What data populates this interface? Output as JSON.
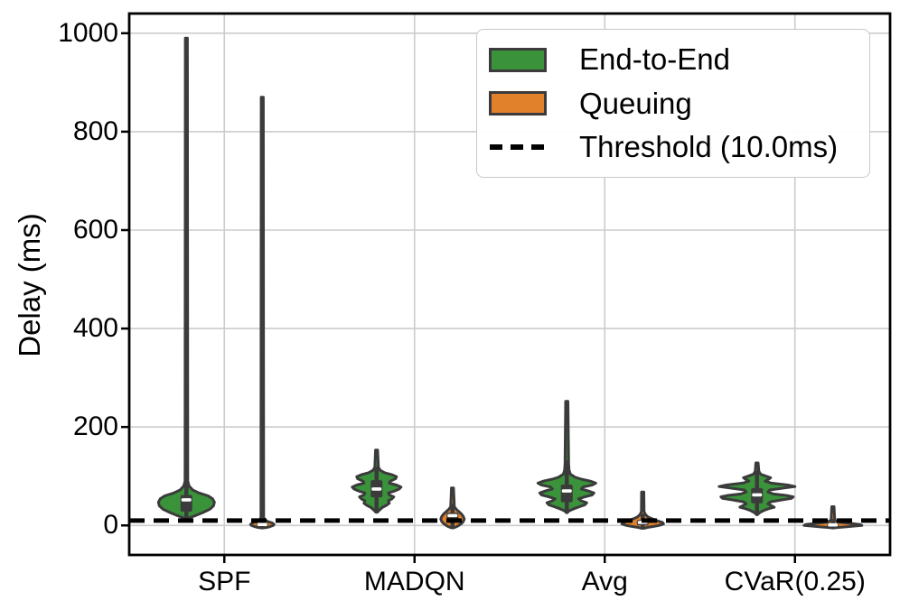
{
  "colors": {
    "green": "#3a923a",
    "orange": "#e1812c",
    "edge": "#3b3b3b",
    "grid": "#cccccc",
    "spine": "#000000",
    "threshold": "#000000",
    "median": "#ffffff",
    "background": "#ffffff"
  },
  "legend": {
    "items": [
      {
        "label": "End-to-End",
        "type": "patch",
        "color": "#3a923a"
      },
      {
        "label": "Queuing",
        "type": "patch",
        "color": "#e1812c"
      },
      {
        "label": "Threshold (10.0ms)",
        "type": "dashed-line",
        "color": "#000000"
      }
    ]
  },
  "chart_data": {
    "type": "violin",
    "title": "",
    "xlabel": "",
    "ylabel": "Delay (ms)",
    "categories": [
      "SPF",
      "MADQN",
      "Avg",
      "CVaR(0.25)"
    ],
    "yticks": [
      0,
      200,
      400,
      600,
      800,
      1000
    ],
    "ylim": [
      -60,
      1040
    ],
    "grid": true,
    "legend_position": "upper right",
    "threshold": {
      "value": 10.0,
      "label": "Threshold (10.0ms)"
    },
    "series": [
      {
        "name": "End-to-End",
        "color": "#3a923a",
        "offset": -42
      },
      {
        "name": "Queuing",
        "color": "#e1812c",
        "offset": 42
      }
    ],
    "violins": [
      {
        "category": 0,
        "series": 0,
        "max": 990,
        "profile": [
          [
            13,
            1
          ],
          [
            16,
            4
          ],
          [
            20,
            10
          ],
          [
            26,
            18
          ],
          [
            33,
            26
          ],
          [
            40,
            30
          ],
          [
            47,
            31
          ],
          [
            54,
            29
          ],
          [
            60,
            24
          ],
          [
            66,
            14
          ],
          [
            72,
            7
          ],
          [
            80,
            3
          ],
          [
            90,
            1.5
          ],
          [
            990,
            1.2
          ]
        ],
        "box": {
          "whisker_low": 14,
          "q1": 28,
          "median": 52,
          "q3": 62,
          "whisker_high": 88
        }
      },
      {
        "category": 0,
        "series": 1,
        "max": 870,
        "profile": [
          [
            -5,
            1
          ],
          [
            -4,
            5
          ],
          [
            -2,
            9
          ],
          [
            0,
            12
          ],
          [
            2,
            13
          ],
          [
            5,
            11
          ],
          [
            8,
            6
          ],
          [
            11,
            3
          ],
          [
            16,
            1.5
          ],
          [
            870,
            1.2
          ]
        ],
        "box": {
          "whisker_low": -4,
          "q1": -1,
          "median": 2,
          "q3": 5,
          "whisker_high": 10
        }
      },
      {
        "category": 1,
        "series": 0,
        "max": 153,
        "profile": [
          [
            27,
            1
          ],
          [
            31,
            3
          ],
          [
            36,
            6
          ],
          [
            41,
            11
          ],
          [
            45,
            14
          ],
          [
            50,
            13
          ],
          [
            54,
            17
          ],
          [
            58,
            19
          ],
          [
            62,
            14
          ],
          [
            66,
            13
          ],
          [
            70,
            20
          ],
          [
            74,
            25
          ],
          [
            78,
            27
          ],
          [
            82,
            22
          ],
          [
            86,
            14
          ],
          [
            90,
            15
          ],
          [
            95,
            21
          ],
          [
            99,
            22
          ],
          [
            103,
            17
          ],
          [
            107,
            9
          ],
          [
            112,
            4
          ],
          [
            118,
            2
          ],
          [
            153,
            1.2
          ]
        ],
        "box": {
          "whisker_low": 28,
          "q1": 57,
          "median": 74,
          "q3": 92,
          "whisker_high": 116
        }
      },
      {
        "category": 1,
        "series": 1,
        "max": 76,
        "profile": [
          [
            -5,
            1
          ],
          [
            -3,
            4
          ],
          [
            0,
            7
          ],
          [
            4,
            10
          ],
          [
            8,
            12
          ],
          [
            13,
            13
          ],
          [
            18,
            12
          ],
          [
            23,
            10
          ],
          [
            28,
            7
          ],
          [
            33,
            4
          ],
          [
            38,
            2
          ],
          [
            76,
            1.2
          ]
        ],
        "box": {
          "whisker_low": -3,
          "q1": 9,
          "median": 20,
          "q3": 26,
          "whisker_high": 40
        }
      },
      {
        "category": 2,
        "series": 0,
        "max": 252,
        "profile": [
          [
            27,
            1
          ],
          [
            30,
            3
          ],
          [
            34,
            8
          ],
          [
            38,
            14
          ],
          [
            42,
            20
          ],
          [
            46,
            22
          ],
          [
            50,
            16
          ],
          [
            54,
            13
          ],
          [
            58,
            20
          ],
          [
            62,
            28
          ],
          [
            66,
            30
          ],
          [
            70,
            24
          ],
          [
            74,
            16
          ],
          [
            78,
            18
          ],
          [
            82,
            28
          ],
          [
            86,
            32
          ],
          [
            90,
            26
          ],
          [
            94,
            16
          ],
          [
            98,
            9
          ],
          [
            104,
            4
          ],
          [
            112,
            2.5
          ],
          [
            125,
            2
          ],
          [
            252,
            1.2
          ]
        ],
        "box": {
          "whisker_low": 27,
          "q1": 47,
          "median": 70,
          "q3": 83,
          "whisker_high": 128
        }
      },
      {
        "category": 2,
        "series": 1,
        "max": 68,
        "profile": [
          [
            -6,
            1
          ],
          [
            -4,
            5
          ],
          [
            -2,
            12
          ],
          [
            0,
            18
          ],
          [
            3,
            23
          ],
          [
            6,
            22
          ],
          [
            9,
            17
          ],
          [
            13,
            11
          ],
          [
            17,
            6
          ],
          [
            22,
            3
          ],
          [
            28,
            1.5
          ],
          [
            68,
            1.2
          ]
        ],
        "box": {
          "whisker_low": -4,
          "q1": 0,
          "median": 6,
          "q3": 11,
          "whisker_high": 20
        }
      },
      {
        "category": 3,
        "series": 0,
        "max": 127,
        "profile": [
          [
            23,
            1
          ],
          [
            26,
            3
          ],
          [
            30,
            7
          ],
          [
            34,
            13
          ],
          [
            37,
            19
          ],
          [
            40,
            16
          ],
          [
            44,
            12
          ],
          [
            48,
            15
          ],
          [
            52,
            28
          ],
          [
            55,
            38
          ],
          [
            58,
            40
          ],
          [
            61,
            32
          ],
          [
            64,
            18
          ],
          [
            68,
            12
          ],
          [
            72,
            14
          ],
          [
            76,
            30
          ],
          [
            79,
            42
          ],
          [
            82,
            34
          ],
          [
            86,
            16
          ],
          [
            90,
            9
          ],
          [
            94,
            13
          ],
          [
            97,
            15
          ],
          [
            100,
            10
          ],
          [
            104,
            4
          ],
          [
            110,
            2
          ],
          [
            127,
            1.2
          ]
        ],
        "box": {
          "whisker_low": 23,
          "q1": 45,
          "median": 62,
          "q3": 76,
          "whisker_high": 108
        }
      },
      {
        "category": 3,
        "series": 1,
        "max": 38,
        "profile": [
          [
            -5,
            1
          ],
          [
            -4,
            6
          ],
          [
            -3,
            14
          ],
          [
            -1,
            26
          ],
          [
            0,
            32
          ],
          [
            2,
            30
          ],
          [
            4,
            20
          ],
          [
            6,
            10
          ],
          [
            8,
            5
          ],
          [
            11,
            2
          ],
          [
            38,
            1.2
          ]
        ],
        "box": {
          "whisker_low": -4,
          "q1": -2,
          "median": 1,
          "q3": 5,
          "whisker_high": 9
        }
      }
    ]
  }
}
